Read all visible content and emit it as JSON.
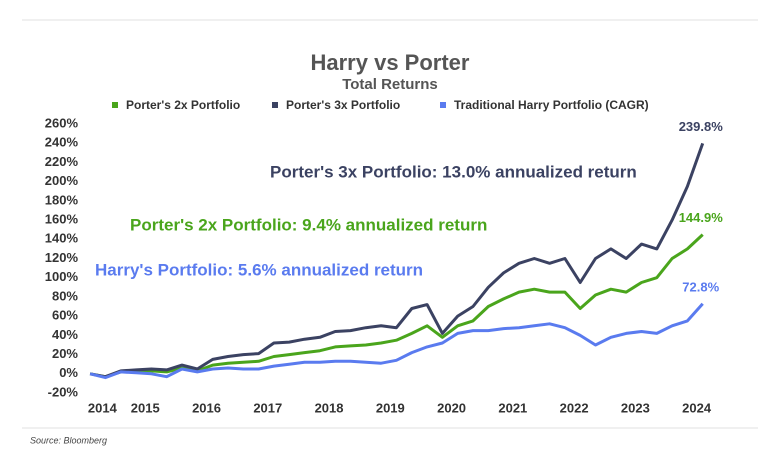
{
  "chart_data": {
    "type": "line",
    "title": "Harry vs Porter",
    "subtitle": "Total Returns",
    "source": "Source: Bloomberg",
    "annotations": [
      "Porter's 3x Portfolio: 13.0% annualized return",
      "Porter's 2x Portfolio: 9.4% annualized return",
      "Harry's Portfolio: 5.6% annualized return"
    ],
    "annotation_colors": [
      "#3b4262",
      "#4aa51c",
      "#5a7bef"
    ],
    "x": [
      2014.1,
      2014.35,
      2014.6,
      2014.85,
      2015.1,
      2015.35,
      2015.6,
      2015.85,
      2016.1,
      2016.35,
      2016.6,
      2016.85,
      2017.1,
      2017.35,
      2017.6,
      2017.85,
      2018.1,
      2018.35,
      2018.6,
      2018.85,
      2019.1,
      2019.35,
      2019.6,
      2019.85,
      2020.1,
      2020.35,
      2020.6,
      2020.85,
      2021.1,
      2021.35,
      2021.6,
      2021.85,
      2022.1,
      2022.35,
      2022.6,
      2022.85,
      2023.1,
      2023.35,
      2023.6,
      2023.85,
      2024.1
    ],
    "series": [
      {
        "name": "Porter's 2x Portfolio",
        "color": "#4aa51c",
        "values": [
          0,
          -3,
          2,
          3,
          3,
          2,
          6,
          3,
          9,
          11,
          12,
          13,
          18,
          20,
          22,
          24,
          28,
          29,
          30,
          32,
          35,
          42,
          50,
          38,
          50,
          55,
          70,
          78,
          85,
          88,
          85,
          85,
          68,
          82,
          88,
          85,
          95,
          100,
          120,
          130,
          144.9
        ],
        "value_labels": [
          null,
          null,
          null,
          null,
          null,
          null,
          null,
          null,
          null,
          null,
          null,
          null,
          null,
          null,
          null,
          null,
          null,
          null,
          null,
          null,
          null,
          null,
          null,
          null,
          null,
          null,
          null,
          null,
          null,
          null,
          null,
          null,
          null,
          null,
          null,
          null,
          null,
          null,
          null,
          null,
          "144.9%"
        ]
      },
      {
        "name": "Porter's 3x Portfolio",
        "color": "#3b4262",
        "values": [
          0,
          -3,
          3,
          4,
          5,
          4,
          9,
          5,
          15,
          18,
          20,
          21,
          32,
          33,
          36,
          38,
          44,
          45,
          48,
          50,
          48,
          68,
          72,
          42,
          60,
          70,
          90,
          105,
          115,
          120,
          115,
          120,
          95,
          120,
          130,
          120,
          135,
          130,
          160,
          195,
          239.8
        ],
        "value_labels": [
          null,
          null,
          null,
          null,
          null,
          null,
          null,
          null,
          null,
          null,
          null,
          null,
          null,
          null,
          null,
          null,
          null,
          null,
          null,
          null,
          null,
          null,
          null,
          null,
          null,
          null,
          null,
          null,
          null,
          null,
          null,
          null,
          null,
          null,
          null,
          null,
          null,
          null,
          null,
          null,
          "239.8%"
        ]
      },
      {
        "name": "Traditional Harry Portfolio (CAGR)",
        "color": "#5a7bef",
        "values": [
          0,
          -4,
          2,
          1,
          0,
          -3,
          5,
          2,
          5,
          6,
          5,
          5,
          8,
          10,
          12,
          12,
          13,
          13,
          12,
          11,
          14,
          22,
          28,
          32,
          42,
          45,
          45,
          47,
          48,
          50,
          52,
          48,
          40,
          30,
          38,
          42,
          44,
          42,
          50,
          55,
          72.8
        ],
        "value_labels": [
          null,
          null,
          null,
          null,
          null,
          null,
          null,
          null,
          null,
          null,
          null,
          null,
          null,
          null,
          null,
          null,
          null,
          null,
          null,
          null,
          null,
          null,
          null,
          null,
          null,
          null,
          null,
          null,
          null,
          null,
          null,
          null,
          null,
          null,
          null,
          null,
          null,
          null,
          null,
          null,
          "72.8%"
        ]
      }
    ],
    "xlim": [
      2014,
      2024.3
    ],
    "xticks": [
      {
        "value": 2014.3,
        "label": "2014"
      },
      2015,
      2016,
      2017,
      2018,
      2019,
      2020,
      2021,
      2022,
      2023,
      2024
    ],
    "ylim": [
      -20,
      260
    ],
    "yticks": [
      {
        "value": -20,
        "label": "-20%"
      },
      {
        "value": 0,
        "label": "0%"
      },
      {
        "value": 20,
        "label": "20%"
      },
      {
        "value": 40,
        "label": "40%"
      },
      {
        "value": 60,
        "label": "60%"
      },
      {
        "value": 80,
        "label": "80%"
      },
      {
        "value": 100,
        "label": "100%"
      },
      {
        "value": 120,
        "label": "120%"
      },
      {
        "value": 140,
        "label": "140%"
      },
      {
        "value": 160,
        "label": "160%"
      },
      {
        "value": 180,
        "label": "180%"
      },
      {
        "value": 200,
        "label": "200%"
      },
      {
        "value": 220,
        "label": "220%"
      },
      {
        "value": 240,
        "label": "240%"
      },
      {
        "value": 260,
        "label": "260%"
      }
    ],
    "grid": false
  }
}
